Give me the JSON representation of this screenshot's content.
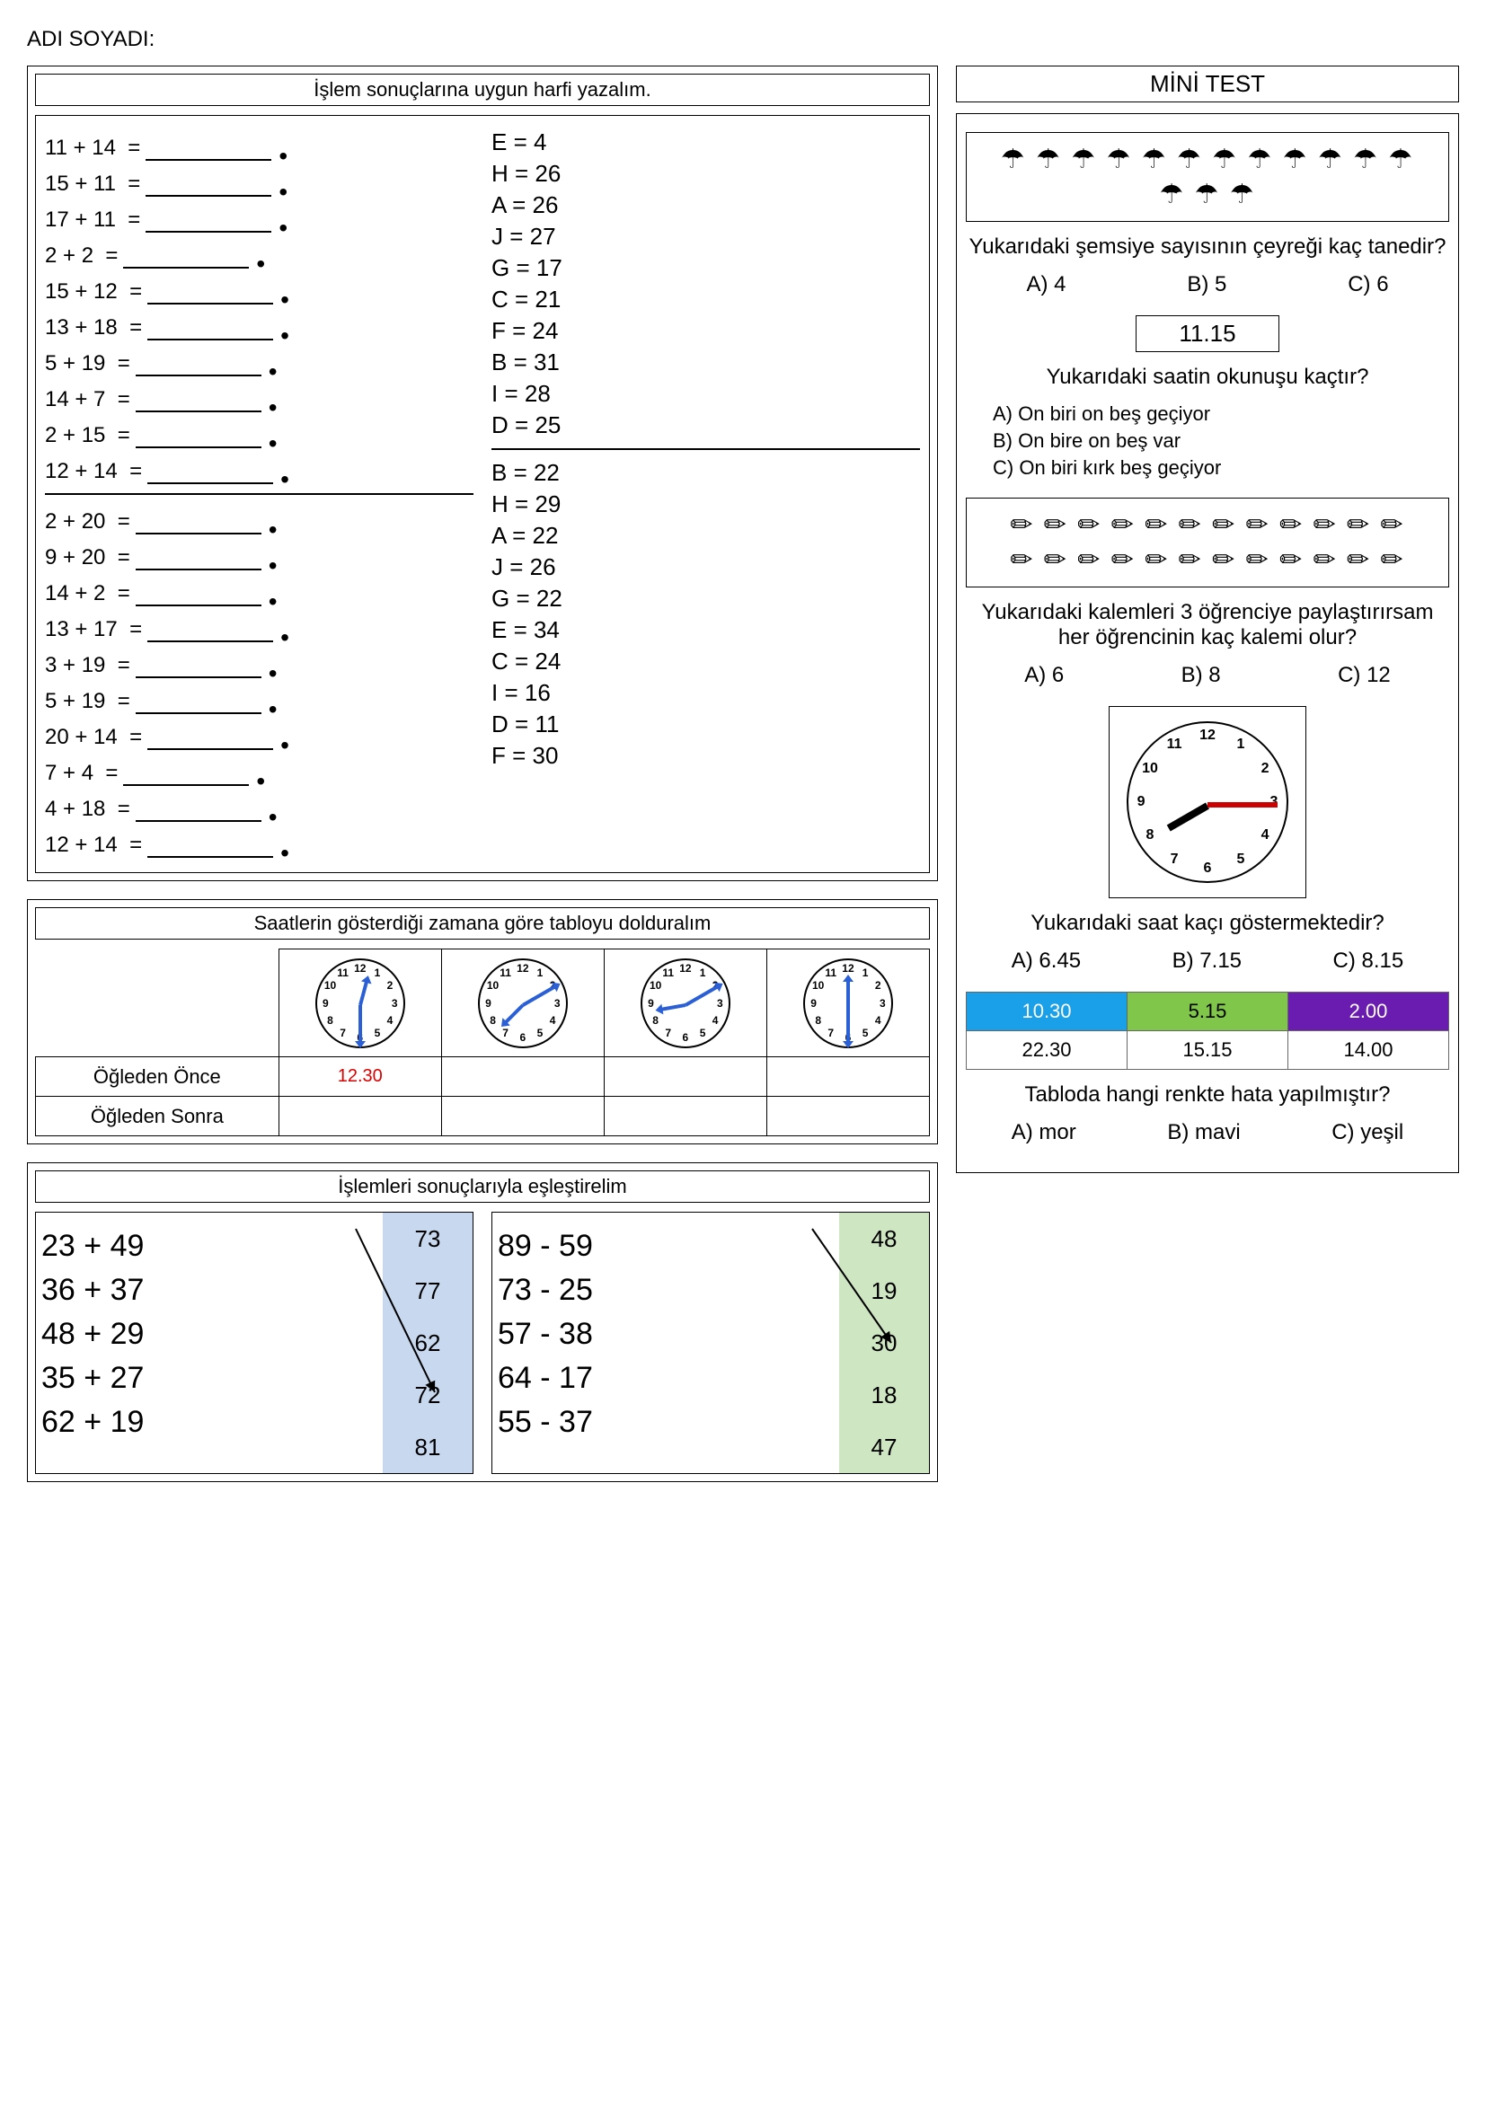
{
  "name_label": "ADI SOYADI:",
  "section1": {
    "title": "İşlem sonuçlarına uygun harfi yazalım.",
    "group1": [
      "11 + 14  =",
      "15 + 11  =",
      "17 + 11  =",
      "2 + 2  =",
      "15 + 12  =",
      "13 + 18  =",
      "5 + 19  =",
      "14 + 7  =",
      "2 + 15  =",
      "12 + 14  ="
    ],
    "letters1": [
      "E = 4",
      "H = 26",
      "A = 26",
      "J = 27",
      "G = 17",
      "C = 21",
      "F = 24",
      "B = 31",
      "I = 28",
      "D = 25"
    ],
    "group2": [
      "2 + 20  =",
      "9 + 20  =",
      "14 + 2  =",
      "13 + 17  =",
      "3 + 19  =",
      "5 + 19  =",
      "20 + 14  =",
      "7 + 4  =",
      "4 + 18  =",
      "12 + 14  ="
    ],
    "letters2": [
      "B = 22",
      "H = 29",
      "A = 22",
      "J = 26",
      "G = 22",
      "E = 34",
      "C = 24",
      "I = 16",
      "D = 11",
      "F = 30"
    ]
  },
  "section2": {
    "title": "Saatlerin gösterdiği zamana göre tabloyu dolduralım",
    "row_labels": [
      "Öğleden Önce",
      "Öğleden Sonra"
    ],
    "first_value": "12.30",
    "clocks": [
      {
        "hour_angle": -75,
        "minute_angle": 90
      },
      {
        "hour_angle": 135,
        "minute_angle": -30
      },
      {
        "hour_angle": 170,
        "minute_angle": -30
      },
      {
        "hour_angle": -90,
        "minute_angle": 90
      }
    ]
  },
  "section3": {
    "title": "İşlemleri sonuçlarıyla eşleştirelim",
    "left": {
      "expr": [
        "23 + 49",
        "36 + 37",
        "48 + 29",
        "35 + 27",
        "62 + 19"
      ],
      "ans": [
        "73",
        "77",
        "62",
        "72",
        "81"
      ],
      "bg": "#c8d8ee"
    },
    "right": {
      "expr": [
        "89 - 59",
        "73 - 25",
        "57 - 38",
        "64 - 17",
        "55 - 37"
      ],
      "ans": [
        "48",
        "19",
        "30",
        "18",
        "47"
      ],
      "bg": "#cfe6c2"
    }
  },
  "mini": {
    "title": "MİNİ TEST",
    "q1": {
      "umbrella": "☂",
      "row1_count": 12,
      "row2_count": 3,
      "text": "Yukarıdaki şemsiye sayısının çeyreği kaç tanedir?",
      "opts": [
        "A) 4",
        "B) 5",
        "C) 6"
      ]
    },
    "q2": {
      "time": "11.15",
      "text": "Yukarıdaki saatin okunuşu kaçtır?",
      "answers": [
        "A) On biri on beş geçiyor",
        "B) On bire on beş var",
        "C) On biri kırk beş geçiyor"
      ]
    },
    "q3": {
      "pencil": "✏",
      "row_count": 12,
      "text": "Yukarıdaki kalemleri 3 öğrenciye paylaştırırsam her öğrencinin kaç kalemi olur?",
      "opts": [
        "A) 6",
        "B) 8",
        "C) 12"
      ]
    },
    "q4": {
      "clock": {
        "hour_angle": 150,
        "minute_angle": 0
      },
      "text": "Yukarıdaki saat kaçı göstermektedir?",
      "opts": [
        "A) 6.45",
        "B) 7.15",
        "C) 8.15"
      ]
    },
    "q5": {
      "row1": [
        {
          "v": "10.30",
          "bg": "#1aa0e8",
          "fg": "#fff"
        },
        {
          "v": "5.15",
          "bg": "#7fc64a",
          "fg": "#000"
        },
        {
          "v": "2.00",
          "bg": "#6a1bb0",
          "fg": "#fff"
        }
      ],
      "row2": [
        {
          "v": "22.30",
          "bg": "#fff",
          "fg": "#000"
        },
        {
          "v": "15.15",
          "bg": "#fff",
          "fg": "#000"
        },
        {
          "v": "14.00",
          "bg": "#fff",
          "fg": "#000"
        }
      ],
      "text": "Tabloda hangi renkte hata yapılmıştır?",
      "opts": [
        "A) mor",
        "B) mavi",
        "C) yeşil"
      ]
    }
  }
}
